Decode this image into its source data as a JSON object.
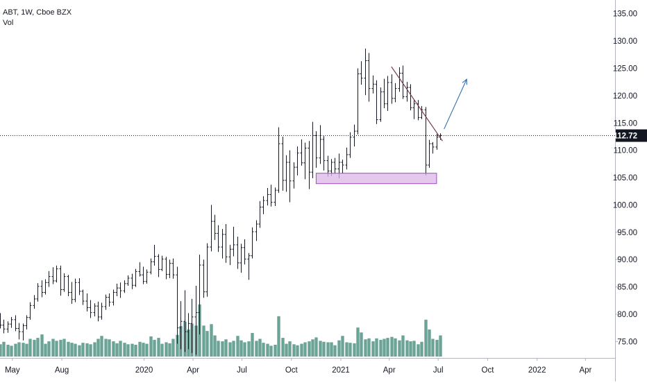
{
  "legend": {
    "symbol_line": "ABT, 1W, Cboe BZX",
    "volume_label": "Vol"
  },
  "colors": {
    "bars": "#131722",
    "volume": "#5b9a8b",
    "trendline": "#7a3e48",
    "arrow": "#2f6fb3",
    "box_fill": "#d9b8e6",
    "box_stroke": "#a04ac0",
    "price_line": "#131722",
    "price_label_bg": "#131722",
    "axis_text": "#131722"
  },
  "chart_data": {
    "type": "ohlc",
    "y_ticks": [
      "75.00",
      "80.00",
      "85.00",
      "90.00",
      "95.00",
      "100.00",
      "105.00",
      "110.00",
      "115.00",
      "120.00",
      "125.00",
      "130.00",
      "135.00"
    ],
    "x_ticks": [
      {
        "label": "May",
        "date": "2019-05-01"
      },
      {
        "label": "Aug",
        "date": "2019-08-01"
      },
      {
        "label": "2020",
        "date": "2020-01-01"
      },
      {
        "label": "Apr",
        "date": "2020-04-01"
      },
      {
        "label": "Jul",
        "date": "2020-07-01"
      },
      {
        "label": "Oct",
        "date": "2020-10-01"
      },
      {
        "label": "2021",
        "date": "2021-01-01"
      },
      {
        "label": "Apr",
        "date": "2021-04-01"
      },
      {
        "label": "Jul",
        "date": "2021-07-01"
      },
      {
        "label": "Oct",
        "date": "2021-10-01"
      },
      {
        "label": "2022",
        "date": "2022-01-01"
      },
      {
        "label": "Apr",
        "date": "2022-04-01"
      }
    ],
    "x_range": [
      "2019-04-08",
      "2022-05-26"
    ],
    "y_range": [
      72.0,
      137.5
    ],
    "last_price": 112.72,
    "last_price_label": "112.72",
    "weekly_bars": [
      [
        79.6,
        80.2,
        77.4,
        78.0,
        2.5
      ],
      [
        78.0,
        79.0,
        76.5,
        77.3,
        3.0
      ],
      [
        77.3,
        78.7,
        76.6,
        78.2,
        2.4
      ],
      [
        78.2,
        79.5,
        77.5,
        79.0,
        2.2
      ],
      [
        79.0,
        79.8,
        76.9,
        77.4,
        2.6
      ],
      [
        77.4,
        78.4,
        75.4,
        76.8,
        2.9
      ],
      [
        76.8,
        78.3,
        75.2,
        77.9,
        2.8
      ],
      [
        77.9,
        79.8,
        77.2,
        79.4,
        2.6
      ],
      [
        79.4,
        82.2,
        79.0,
        81.6,
        3.6
      ],
      [
        81.6,
        83.5,
        81.0,
        82.8,
        3.4
      ],
      [
        82.8,
        85.7,
        82.3,
        85.1,
        3.8
      ],
      [
        85.1,
        86.2,
        83.1,
        84.0,
        4.5
      ],
      [
        84.0,
        86.4,
        83.6,
        85.8,
        2.6
      ],
      [
        85.8,
        87.9,
        85.0,
        86.9,
        3.1
      ],
      [
        86.9,
        88.6,
        85.5,
        86.1,
        3.6
      ],
      [
        86.1,
        88.9,
        85.8,
        88.3,
        3.2
      ],
      [
        88.3,
        88.9,
        83.4,
        84.5,
        3.4
      ],
      [
        84.5,
        87.5,
        84.1,
        86.9,
        3.6
      ],
      [
        86.9,
        87.2,
        83.3,
        84.0,
        3.0
      ],
      [
        84.0,
        85.9,
        81.9,
        82.7,
        2.8
      ],
      [
        82.7,
        86.5,
        82.2,
        85.8,
        2.6
      ],
      [
        85.8,
        86.6,
        83.5,
        84.2,
        2.3
      ],
      [
        84.2,
        84.5,
        81.7,
        82.4,
        2.8
      ],
      [
        82.4,
        83.8,
        80.5,
        81.2,
        2.7
      ],
      [
        81.2,
        82.6,
        79.3,
        80.3,
        2.5
      ],
      [
        80.3,
        82.0,
        79.6,
        81.5,
        2.9
      ],
      [
        81.5,
        82.3,
        78.7,
        79.5,
        3.6
      ],
      [
        79.5,
        82.1,
        79.0,
        81.4,
        4.2
      ],
      [
        81.4,
        83.6,
        80.8,
        83.1,
        3.6
      ],
      [
        83.1,
        83.8,
        81.4,
        82.2,
        3.5
      ],
      [
        82.2,
        84.5,
        81.6,
        84.0,
        3.1
      ],
      [
        84.0,
        85.6,
        83.3,
        84.8,
        2.7
      ],
      [
        84.8,
        85.8,
        83.0,
        84.3,
        3.2
      ],
      [
        84.3,
        86.2,
        83.9,
        85.6,
        2.8
      ],
      [
        85.6,
        87.1,
        85.2,
        86.6,
        2.5
      ],
      [
        86.6,
        87.4,
        84.6,
        85.3,
        2.6
      ],
      [
        85.3,
        88.3,
        85.0,
        87.8,
        2.4
      ],
      [
        87.8,
        89.5,
        86.9,
        87.2,
        3.0
      ],
      [
        87.2,
        88.7,
        85.5,
        86.0,
        2.8
      ],
      [
        86.0,
        88.2,
        85.6,
        87.7,
        2.6
      ],
      [
        87.7,
        90.2,
        87.3,
        89.6,
        4.1
      ],
      [
        89.6,
        92.7,
        88.9,
        90.6,
        3.4
      ],
      [
        90.6,
        91.0,
        86.8,
        88.2,
        3.8
      ],
      [
        88.2,
        90.7,
        87.9,
        90.1,
        2.6
      ],
      [
        90.1,
        90.5,
        86.4,
        87.3,
        2.9
      ],
      [
        87.3,
        90.0,
        86.6,
        89.3,
        2.7
      ],
      [
        89.3,
        90.2,
        86.5,
        87.2,
        3.6
      ],
      [
        87.2,
        88.7,
        74.6,
        77.5,
        4.4
      ],
      [
        77.5,
        82.4,
        73.6,
        78.7,
        6.2
      ],
      [
        78.7,
        84.4,
        73.1,
        76.8,
        7.1
      ],
      [
        76.8,
        80.2,
        73.6,
        78.3,
        5.5
      ],
      [
        78.3,
        82.8,
        72.9,
        79.5,
        6.7
      ],
      [
        79.5,
        85.2,
        72.6,
        80.3,
        6.3
      ],
      [
        80.3,
        90.9,
        76.3,
        89.0,
        10.6
      ],
      [
        89.0,
        90.0,
        83.0,
        84.1,
        6.3
      ],
      [
        84.1,
        93.0,
        83.2,
        92.3,
        5.2
      ],
      [
        92.3,
        100.0,
        91.5,
        97.0,
        6.6
      ],
      [
        97.0,
        98.2,
        93.6,
        94.8,
        4.3
      ],
      [
        94.8,
        96.3,
        91.4,
        92.3,
        3.2
      ],
      [
        92.3,
        95.6,
        90.2,
        94.6,
        3.1
      ],
      [
        94.6,
        96.5,
        89.4,
        90.5,
        3.5
      ],
      [
        90.5,
        92.7,
        89.0,
        91.9,
        2.9
      ],
      [
        91.9,
        96.0,
        90.6,
        92.7,
        3.2
      ],
      [
        92.7,
        94.2,
        88.3,
        89.4,
        4.2
      ],
      [
        89.4,
        92.9,
        87.6,
        92.2,
        3.3
      ],
      [
        92.2,
        93.7,
        89.1,
        90.1,
        2.9
      ],
      [
        90.1,
        91.2,
        86.3,
        90.7,
        3.1
      ],
      [
        90.7,
        95.9,
        90.2,
        95.1,
        4.8
      ],
      [
        95.1,
        97.2,
        93.4,
        96.5,
        3.2
      ],
      [
        96.5,
        100.7,
        95.8,
        99.6,
        3.6
      ],
      [
        99.6,
        101.6,
        98.3,
        100.8,
        2.8
      ],
      [
        100.8,
        103.1,
        99.9,
        101.9,
        2.6
      ],
      [
        101.9,
        103.7,
        99.7,
        100.5,
        2.2
      ],
      [
        100.5,
        103.2,
        99.8,
        102.7,
        2.4
      ],
      [
        102.7,
        114.2,
        102.2,
        111.2,
        8.2
      ],
      [
        111.2,
        112.5,
        102.6,
        104.5,
        3.8
      ],
      [
        104.5,
        109.1,
        102.4,
        107.8,
        2.6
      ],
      [
        107.8,
        110.0,
        100.5,
        104.4,
        3.1
      ],
      [
        104.4,
        107.8,
        103.0,
        106.9,
        2.5
      ],
      [
        106.9,
        110.7,
        105.4,
        109.5,
        2.3
      ],
      [
        109.5,
        112.0,
        107.2,
        107.7,
        2.6
      ],
      [
        107.7,
        111.4,
        104.7,
        110.4,
        2.9
      ],
      [
        110.4,
        111.7,
        102.9,
        106.0,
        3.1
      ],
      [
        106.0,
        115.2,
        104.9,
        112.7,
        3.5
      ],
      [
        112.7,
        113.5,
        106.8,
        108.6,
        3.9
      ],
      [
        108.6,
        114.6,
        107.5,
        112.0,
        3.2
      ],
      [
        112.0,
        112.6,
        106.3,
        108.1,
        3.0
      ],
      [
        108.1,
        109.0,
        105.2,
        106.2,
        2.9
      ],
      [
        106.2,
        108.4,
        105.3,
        107.8,
        2.9
      ],
      [
        107.8,
        108.6,
        105.7,
        106.6,
        2.3
      ],
      [
        106.6,
        109.4,
        104.9,
        107.8,
        3.3
      ],
      [
        107.8,
        108.3,
        105.8,
        107.3,
        4.2
      ],
      [
        107.3,
        110.5,
        106.5,
        109.2,
        2.9
      ],
      [
        109.2,
        113.3,
        108.6,
        112.4,
        2.8
      ],
      [
        112.4,
        114.7,
        110.7,
        113.5,
        2.7
      ],
      [
        113.5,
        125.0,
        112.9,
        124.0,
        5.9
      ],
      [
        124.0,
        126.3,
        122.0,
        123.2,
        4.9
      ],
      [
        123.2,
        128.6,
        120.1,
        126.4,
        3.5
      ],
      [
        126.4,
        127.8,
        118.9,
        121.3,
        3.7
      ],
      [
        121.3,
        123.7,
        120.4,
        122.1,
        3.1
      ],
      [
        122.1,
        122.8,
        114.8,
        115.6,
        3.7
      ],
      [
        115.6,
        121.5,
        115.2,
        120.7,
        3.4
      ],
      [
        120.7,
        123.1,
        117.7,
        118.5,
        3.6
      ],
      [
        118.5,
        123.6,
        117.2,
        122.4,
        3.8
      ],
      [
        122.4,
        123.9,
        118.5,
        119.5,
        4.0
      ],
      [
        119.5,
        122.3,
        118.8,
        121.3,
        3.7
      ],
      [
        121.3,
        125.2,
        120.7,
        124.1,
        3.3
      ],
      [
        124.1,
        125.5,
        119.4,
        119.8,
        4.3
      ],
      [
        119.8,
        122.5,
        118.9,
        121.5,
        3.3
      ],
      [
        121.5,
        122.1,
        117.3,
        117.8,
        3.1
      ],
      [
        117.8,
        119.2,
        115.7,
        118.5,
        3.2
      ],
      [
        118.5,
        119.2,
        115.5,
        116.0,
        2.5
      ],
      [
        116.0,
        118.1,
        115.7,
        117.4,
        3.0
      ],
      [
        117.4,
        117.9,
        105.4,
        107.3,
        7.5
      ],
      [
        107.3,
        111.9,
        106.8,
        111.2,
        5.5
      ],
      [
        111.2,
        111.5,
        109.4,
        110.6,
        3.6
      ],
      [
        110.6,
        113.0,
        110.1,
        112.4,
        3.4
      ],
      [
        112.4,
        113.1,
        111.9,
        112.72,
        4.3
      ]
    ],
    "bar_fields": [
      "open",
      "high",
      "low",
      "close",
      "volume_mm"
    ],
    "first_bar_date": "2019-04-08",
    "bar_interval": "1W",
    "drawings": {
      "trendline": {
        "from": {
          "date": "2021-04-05",
          "price": 125.3
        },
        "to": {
          "date": "2021-07-09",
          "price": 111.7
        }
      },
      "arrow": {
        "from": {
          "date": "2021-07-12",
          "price": 113.9
        },
        "to": {
          "date": "2021-08-23",
          "price": 123.0
        }
      },
      "support_box": {
        "from": {
          "date": "2020-11-16",
          "price": 105.8
        },
        "to": {
          "date": "2021-06-28",
          "price": 103.9
        }
      }
    }
  }
}
